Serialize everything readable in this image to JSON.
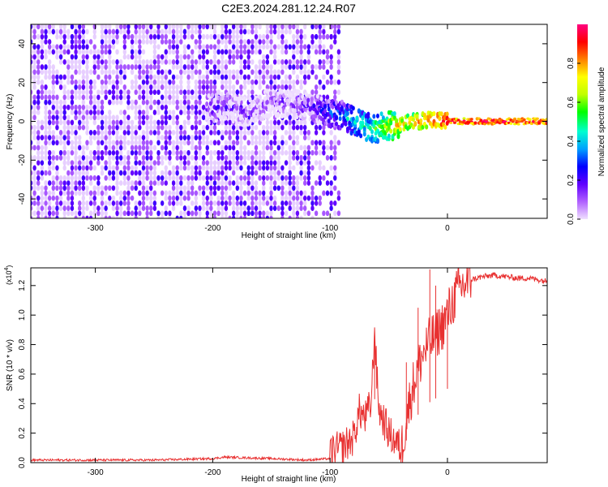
{
  "title": "C2E3.2024.281.12.24.R07",
  "chart_data": [
    {
      "type": "heatmap",
      "xlabel": "Height of straight line (km)",
      "ylabel": "Frequency (Hz)",
      "xlim": [
        -355,
        85
      ],
      "ylim": [
        -50,
        50
      ],
      "xticks": [
        -300,
        -200,
        -100,
        0
      ],
      "yticks": [
        -40,
        -20,
        0,
        20,
        40
      ],
      "colorbar": {
        "label": "Normalized spectral amplitude",
        "range": [
          0,
          1
        ],
        "ticks": [
          "0.0",
          "0.2",
          "0.4",
          "0.6",
          "0.8"
        ],
        "colormap": [
          "#f0e0ff",
          "#b060ff",
          "#6000ff",
          "#0000ff",
          "#00a0ff",
          "#00ffd0",
          "#00ff00",
          "#c0ff00",
          "#ffff00",
          "#ff8000",
          "#ff0000",
          "#ff0080"
        ]
      },
      "trace": {
        "description": "Dominant frequency centre versus height",
        "x": [
          -205,
          -190,
          -170,
          -150,
          -130,
          -110,
          -90,
          -75,
          -65,
          -55,
          -45,
          -35,
          -25,
          -15,
          -5,
          5,
          20,
          40,
          60,
          85
        ],
        "y": [
          6,
          8,
          4,
          10,
          9,
          6,
          3,
          -1,
          -4,
          -3,
          -2,
          -1,
          0,
          1,
          0.5,
          0,
          0,
          0,
          0,
          0
        ],
        "amplitude": [
          0.15,
          0.12,
          0.1,
          0.1,
          0.12,
          0.2,
          0.35,
          0.45,
          0.5,
          0.6,
          0.7,
          0.75,
          0.8,
          0.85,
          0.9,
          0.95,
          0.95,
          0.95,
          0.95,
          0.95
        ]
      },
      "noise_region_x": [
        -355,
        -100
      ],
      "grid": false
    },
    {
      "type": "line",
      "xlabel": "Height of straight line (km)",
      "ylabel": "SNR (10 * v/v)",
      "multiplier_label": "(x10",
      "multiplier_exponent": "4",
      "xlim": [
        -355,
        85
      ],
      "ylim": [
        0,
        1.32
      ],
      "xticks": [
        -300,
        -200,
        -100,
        0
      ],
      "yticks": [
        "0.0",
        "0.2",
        "0.4",
        "0.6",
        "0.8",
        "1.0",
        "1.2"
      ],
      "color": "#e83030",
      "series": [
        {
          "x": [
            -355,
            -300,
            -250,
            -200,
            -190,
            -150,
            -120,
            -100,
            -90,
            -80,
            -75,
            -70,
            -65,
            -62,
            -60,
            -58,
            -55,
            -50,
            -45,
            -40,
            -35,
            -30,
            -25,
            -20,
            -15,
            -10,
            -5,
            0,
            5,
            10,
            20,
            30,
            40,
            50,
            60,
            70,
            85
          ],
          "y": [
            0.01,
            0.01,
            0.01,
            0.02,
            0.03,
            0.02,
            0.01,
            0.02,
            0.05,
            0.12,
            0.3,
            0.25,
            0.35,
            0.86,
            0.5,
            0.3,
            0.25,
            0.15,
            0.1,
            0.05,
            0.3,
            0.5,
            0.65,
            0.75,
            0.82,
            0.87,
            0.92,
            1.0,
            1.1,
            1.18,
            1.24,
            1.26,
            1.27,
            1.26,
            1.25,
            1.25,
            1.23
          ],
          "spikes": [
            {
              "x": -62,
              "y": 0.86
            },
            {
              "x": -35,
              "y": 0.68
            },
            {
              "x": -25,
              "y": 1.05
            },
            {
              "x": -15,
              "y": 1.31
            },
            {
              "x": -10,
              "y": 1.2
            },
            {
              "x": 0,
              "y": 1.1
            }
          ]
        }
      ]
    }
  ]
}
